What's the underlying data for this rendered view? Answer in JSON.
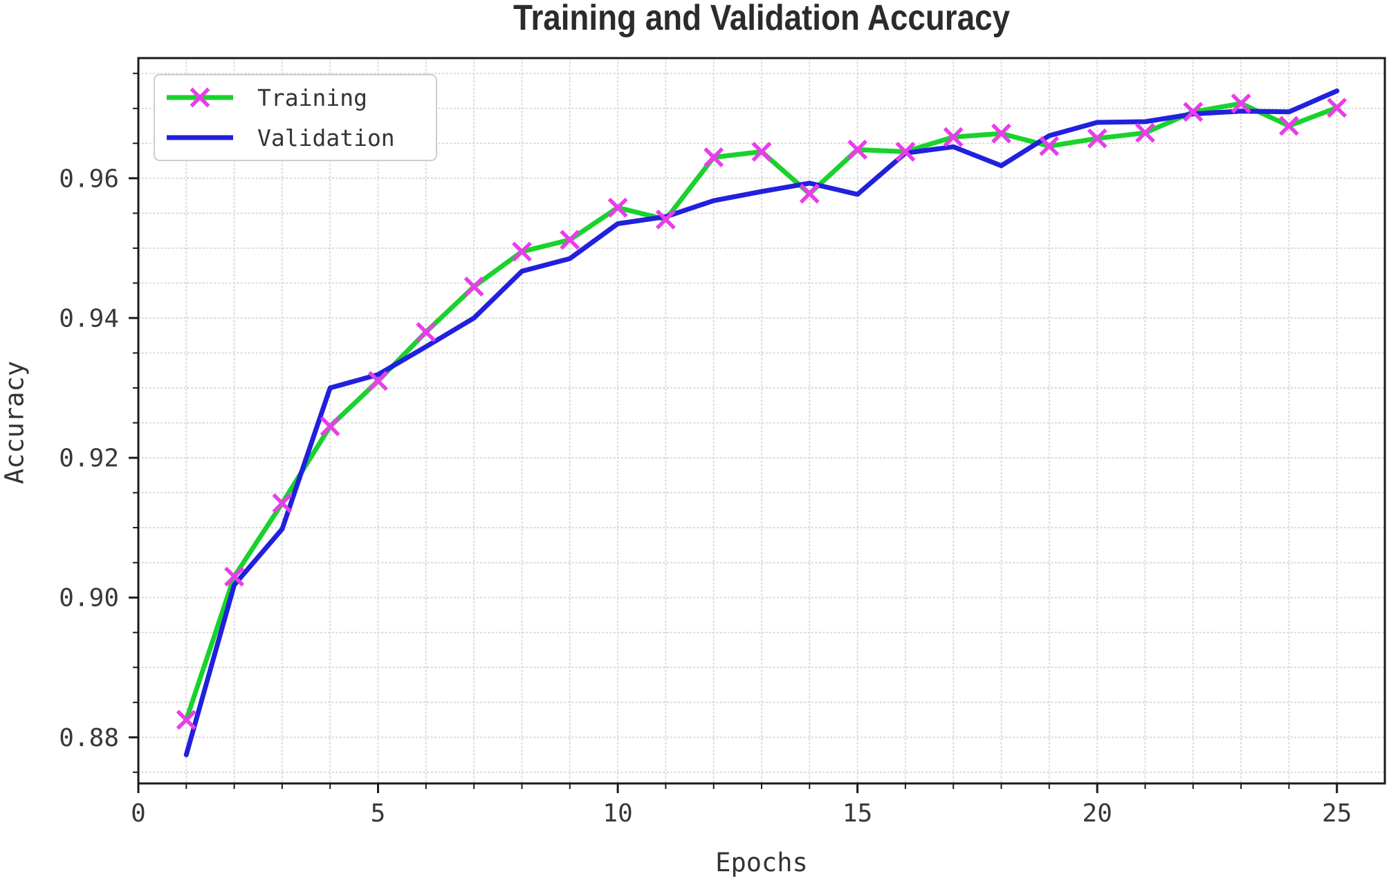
{
  "page": {
    "background": "#ffffff"
  },
  "chart": {
    "title": "Training and Validation Accuracy",
    "xlabel": "Epochs",
    "ylabel": "Accuracy",
    "legend": {
      "position": "upper left",
      "items": [
        {
          "label": "Training"
        },
        {
          "label": "Validation"
        }
      ]
    }
  },
  "chart_data": {
    "type": "line",
    "title": "Training and Validation Accuracy",
    "xlabel": "Epochs",
    "ylabel": "Accuracy",
    "x": [
      1,
      2,
      3,
      4,
      5,
      6,
      7,
      8,
      9,
      10,
      11,
      12,
      13,
      14,
      15,
      16,
      17,
      18,
      19,
      20,
      21,
      22,
      23,
      24,
      25
    ],
    "series": [
      {
        "name": "Training",
        "color": "#19d22d",
        "marker": "x",
        "marker_color": "#e83ee8",
        "values": [
          0.8825,
          0.903,
          0.9135,
          0.9245,
          0.931,
          0.938,
          0.9445,
          0.9495,
          0.9512,
          0.9558,
          0.9541,
          0.963,
          0.9638,
          0.9578,
          0.9641,
          0.9638,
          0.9659,
          0.9664,
          0.9646,
          0.9657,
          0.9665,
          0.9695,
          0.9707,
          0.9675,
          0.9701
        ]
      },
      {
        "name": "Validation",
        "color": "#2120dd",
        "marker": null,
        "marker_color": null,
        "values": [
          0.8775,
          0.9018,
          0.9098,
          0.93,
          0.9319,
          0.9359,
          0.94,
          0.9467,
          0.9485,
          0.9535,
          0.9545,
          0.9568,
          0.9581,
          0.9593,
          0.9577,
          0.9636,
          0.9645,
          0.9618,
          0.9661,
          0.968,
          0.9681,
          0.9692,
          0.9696,
          0.9695,
          0.9725
        ]
      }
    ],
    "xlim": [
      0,
      26
    ],
    "ylim": [
      0.8734,
      0.9772
    ],
    "x_ticks_major": [
      {
        "v": 0,
        "label": "0"
      },
      {
        "v": 5,
        "label": "5"
      },
      {
        "v": 10,
        "label": "10"
      },
      {
        "v": 15,
        "label": "15"
      },
      {
        "v": 20,
        "label": "20"
      },
      {
        "v": 25,
        "label": "25"
      }
    ],
    "y_ticks_major": [
      {
        "v": 0.88,
        "label": "0.88"
      },
      {
        "v": 0.9,
        "label": "0.90"
      },
      {
        "v": 0.92,
        "label": "0.92"
      },
      {
        "v": 0.94,
        "label": "0.94"
      },
      {
        "v": 0.96,
        "label": "0.96"
      }
    ],
    "x_minor_step": 1,
    "y_minor_step": 0.005,
    "grid": "dotted minor+major gridlines on both axes",
    "legend_position": "upper left",
    "style": {
      "grid_color": "#d9d9d9",
      "spine_color": "#1a1a1a",
      "tick_label_color": "#383838",
      "title_color": "#2b2b2b",
      "axis_label_color": "#333333",
      "background": "#ffffff"
    }
  }
}
